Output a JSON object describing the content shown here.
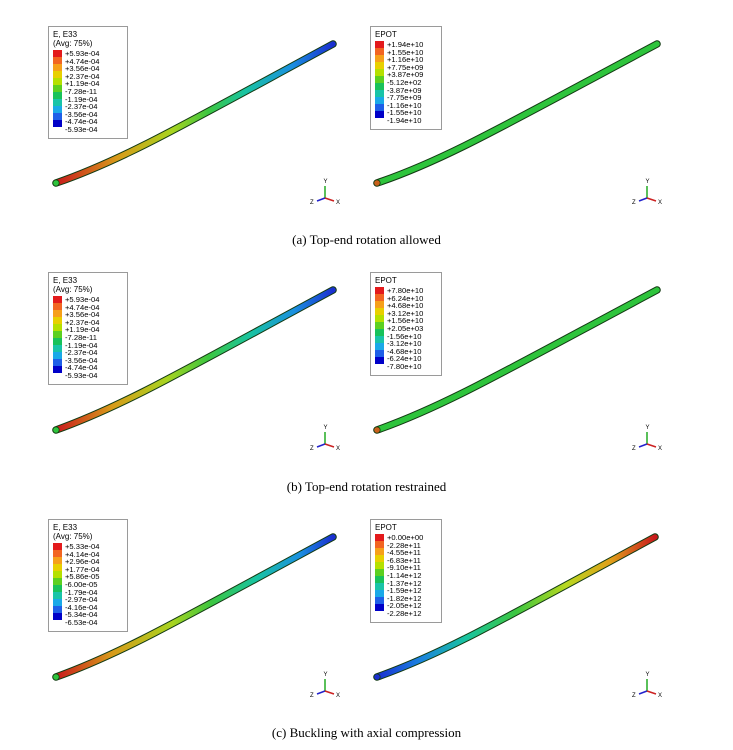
{
  "legend_colors": [
    "#e31a1c",
    "#f26522",
    "#f6a01a",
    "#e8d000",
    "#b5e000",
    "#5cd020",
    "#18c25a",
    "#19c4a8",
    "#1aa9e8",
    "#1e5fe8",
    "#0000c8"
  ],
  "rows": [
    {
      "caption": "(a) Top-end rotation allowed",
      "strain": {
        "title1": "E, E33",
        "title2": "(Avg: 75%)",
        "values": [
          "+5.93e-04",
          "+4.74e-04",
          "+3.56e-04",
          "+2.37e-04",
          "+1.19e-04",
          "-7.28e-11",
          "-1.19e-04",
          "-2.37e-04",
          "-3.56e-04",
          "-4.74e-04",
          "-5.93e-04"
        ]
      },
      "epot": {
        "title1": "EPOT",
        "values": [
          "+1.94e+10",
          "+1.55e+10",
          "+1.16e+10",
          "+7.75e+09",
          "+3.87e+09",
          "-5.12e+02",
          "-3.87e+09",
          "-7.75e+09",
          "-1.16e+10",
          "-1.55e+10",
          "-1.94e+10"
        ]
      }
    },
    {
      "caption": "(b) Top-end rotation restrained",
      "strain": {
        "title1": "E, E33",
        "title2": "(Avg: 75%)",
        "values": [
          "+5.93e-04",
          "+4.74e-04",
          "+3.56e-04",
          "+2.37e-04",
          "+1.19e-04",
          "-7.28e-11",
          "-1.19e-04",
          "-2.37e-04",
          "-3.56e-04",
          "-4.74e-04",
          "-5.93e-04"
        ]
      },
      "epot": {
        "title1": "EPOT",
        "values": [
          "+7.80e+10",
          "+6.24e+10",
          "+4.68e+10",
          "+3.12e+10",
          "+1.56e+10",
          "+2.05e+03",
          "-1.56e+10",
          "-3.12e+10",
          "-4.68e+10",
          "-6.24e+10",
          "-7.80e+10"
        ]
      }
    },
    {
      "caption": "(c) Buckling with axial compression",
      "strain": {
        "title1": "E, E33",
        "title2": "(Avg: 75%)",
        "values": [
          "+5.33e-04",
          "+4.14e-04",
          "+2.96e-04",
          "+1.77e-04",
          "+5.86e-05",
          "-6.00e-05",
          "-1.79e-04",
          "-2.97e-04",
          "-4.16e-04",
          "-5.34e-04",
          "-6.53e-04"
        ]
      },
      "epot": {
        "title1": "EPOT",
        "values": [
          "+0.00e+00",
          "-2.28e+11",
          "-4.55e+11",
          "-6.83e+11",
          "-9.10e+11",
          "-1.14e+12",
          "-1.37e+12",
          "-1.59e+12",
          "-1.82e+12",
          "-2.05e+12",
          "-2.28e+12"
        ]
      }
    }
  ],
  "axes": {
    "y": "Y",
    "z": "Z",
    "x": "X"
  },
  "axis_colors": {
    "y": "#22aa22",
    "z": "#2222cc",
    "x": "#cc2222"
  }
}
